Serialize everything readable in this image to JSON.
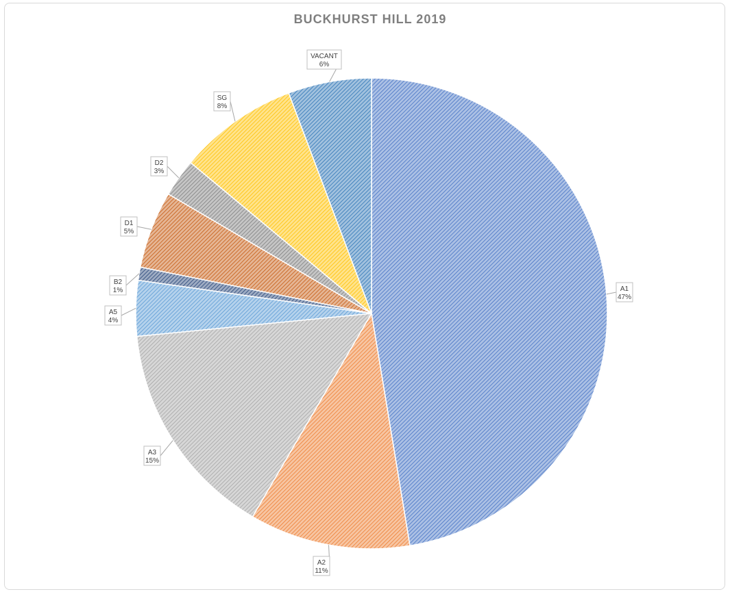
{
  "chart_data": {
    "type": "pie",
    "title": "BUCKHURST HILL 2019",
    "slices": [
      {
        "label": "A1",
        "pct_label": "47%",
        "value": 47.3,
        "color": "#4472c4"
      },
      {
        "label": "A2",
        "pct_label": "11%",
        "value": 11.0,
        "color": "#ed7d31"
      },
      {
        "label": "A3",
        "pct_label": "15%",
        "value": 15.0,
        "color": "#a5a5a5"
      },
      {
        "label": "A5",
        "pct_label": "4%",
        "value": 3.8,
        "color": "#5b9bd5"
      },
      {
        "label": "B2",
        "pct_label": "1%",
        "value": 0.9,
        "color": "#264478"
      },
      {
        "label": "D1",
        "pct_label": "5%",
        "value": 5.3,
        "color": "#c55a11"
      },
      {
        "label": "D2",
        "pct_label": "3%",
        "value": 2.6,
        "color": "#7f7f7f"
      },
      {
        "label": "SG",
        "pct_label": "8%",
        "value": 8.2,
        "color": "#ffc000"
      },
      {
        "label": "VACANT",
        "pct_label": "6%",
        "value": 5.7,
        "color": "#2e75b6"
      }
    ],
    "start_angle": "12 o'clock",
    "direction": "clockwise",
    "legend": "none",
    "fill_style": "hatched"
  }
}
